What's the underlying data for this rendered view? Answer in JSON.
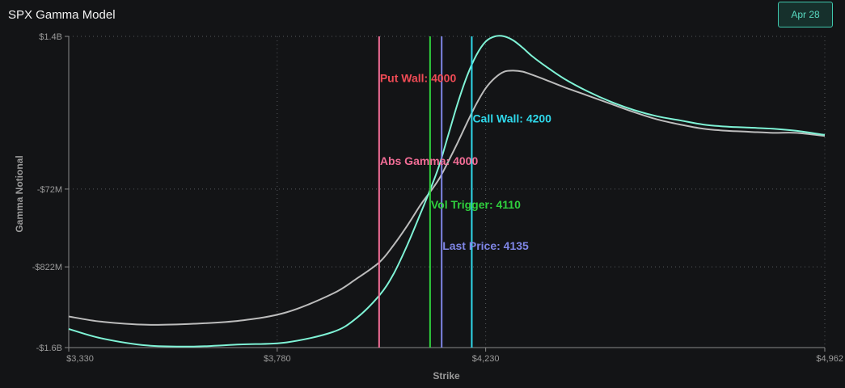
{
  "header": {
    "title": "SPX Gamma Model",
    "date_button": "Apr 28"
  },
  "colors": {
    "background": "#131416",
    "gamma_curve": "#7ff3d6",
    "alt_curve": "#bcbcbc",
    "put_wall": "#f04b55",
    "call_wall": "#2fd8ea",
    "abs_gamma": "#f26d96",
    "vol_trigger": "#2fcf3d",
    "last_price": "#7f86e6"
  },
  "chart_data": {
    "type": "line",
    "title": "SPX Gamma Model",
    "xlabel": "Strike",
    "ylabel": "Gamma Notional",
    "xlim": [
      3330,
      4962
    ],
    "ylim": [
      -1.6,
      1.4
    ],
    "x_tick_labels": [
      "$3,330",
      "$3,780",
      "$4,230",
      "$4,962"
    ],
    "x_ticks": [
      3330,
      3780,
      4230,
      4962
    ],
    "y_tick_labels": [
      "$1.4B",
      "-$72M",
      "-$822M",
      "-$1.6B"
    ],
    "y_ticks": [
      1.4,
      -0.072,
      -0.822,
      -1.6
    ],
    "grid": true,
    "series": [
      {
        "color_key": "gamma_curve",
        "x": [
          3330,
          3400,
          3500,
          3600,
          3700,
          3800,
          3900,
          3950,
          4000,
          4030,
          4060,
          4090,
          4110,
          4130,
          4150,
          4170,
          4190,
          4210,
          4230,
          4250,
          4270,
          4290,
          4310,
          4330,
          4360,
          4400,
          4450,
          4500,
          4550,
          4600,
          4650,
          4700,
          4750,
          4800,
          4850,
          4900,
          4962
        ],
        "y": [
          -1.42,
          -1.51,
          -1.58,
          -1.59,
          -1.57,
          -1.55,
          -1.45,
          -1.32,
          -1.1,
          -0.9,
          -0.62,
          -0.3,
          -0.08,
          0.16,
          0.46,
          0.76,
          1.02,
          1.22,
          1.35,
          1.4,
          1.4,
          1.36,
          1.29,
          1.21,
          1.11,
          0.99,
          0.87,
          0.77,
          0.69,
          0.63,
          0.59,
          0.55,
          0.53,
          0.52,
          0.51,
          0.49,
          0.45
        ]
      },
      {
        "color_key": "alt_curve",
        "x": [
          3330,
          3400,
          3500,
          3600,
          3700,
          3800,
          3900,
          3950,
          4000,
          4030,
          4060,
          4090,
          4110,
          4130,
          4150,
          4170,
          4190,
          4210,
          4230,
          4250,
          4270,
          4290,
          4310,
          4330,
          4360,
          4400,
          4450,
          4500,
          4550,
          4600,
          4650,
          4700,
          4750,
          4800,
          4850,
          4900,
          4962
        ],
        "y": [
          -1.3,
          -1.35,
          -1.38,
          -1.37,
          -1.34,
          -1.26,
          -1.08,
          -0.94,
          -0.78,
          -0.62,
          -0.43,
          -0.22,
          -0.1,
          0.03,
          0.2,
          0.38,
          0.57,
          0.75,
          0.9,
          1.0,
          1.06,
          1.07,
          1.06,
          1.03,
          0.98,
          0.91,
          0.83,
          0.75,
          0.67,
          0.6,
          0.55,
          0.51,
          0.49,
          0.48,
          0.47,
          0.47,
          0.44
        ]
      }
    ],
    "markers": [
      {
        "label": "Put Wall: 4000",
        "x": 4000,
        "color_key": "put_wall",
        "label_y": 1.0
      },
      {
        "label": "Call Wall: 4200",
        "x": 4200,
        "color_key": "call_wall",
        "label_y": 0.61
      },
      {
        "label": "Abs Gamma: 4000",
        "x": 4000,
        "color_key": "abs_gamma",
        "label_y": 0.2
      },
      {
        "label": "Vol Trigger: 4110",
        "x": 4110,
        "color_key": "vol_trigger",
        "label_y": -0.22
      },
      {
        "label": "Last Price: 4135",
        "x": 4135,
        "color_key": "last_price",
        "label_y": -0.62
      }
    ],
    "marker_lines": [
      {
        "x": 4000,
        "color_key": "abs_gamma"
      },
      {
        "x": 4110,
        "color_key": "vol_trigger"
      },
      {
        "x": 4135,
        "color_key": "last_price"
      },
      {
        "x": 4200,
        "color_key": "call_wall"
      }
    ]
  }
}
